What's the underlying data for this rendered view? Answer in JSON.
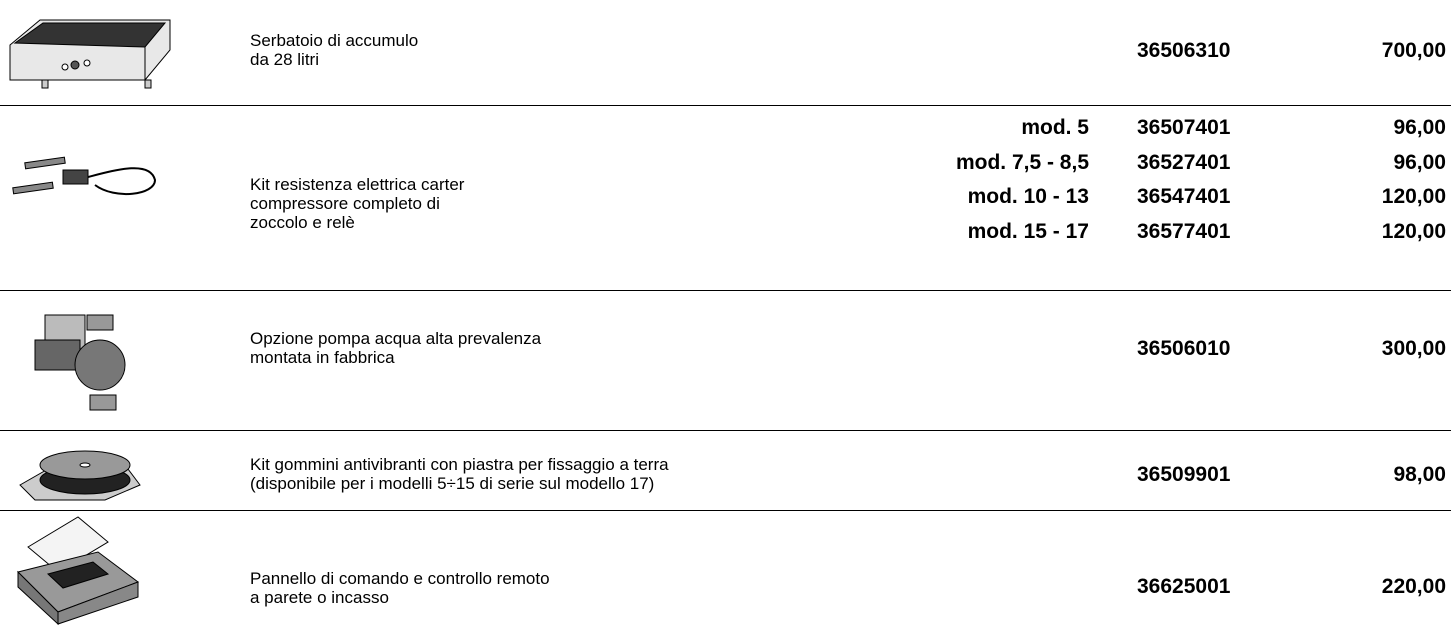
{
  "rows": [
    {
      "description": [
        "Serbatoio di accumulo",
        "da 28 litri"
      ],
      "items": [
        {
          "code": "36506310",
          "price": "700,00"
        }
      ]
    },
    {
      "description": [
        "Kit resistenza elettrica carter",
        "compressore completo di",
        "zoccolo e relè"
      ],
      "items": [
        {
          "model": "mod. 5",
          "code": "36507401",
          "price": "96,00"
        },
        {
          "model": "mod. 7,5 - 8,5",
          "code": "36527401",
          "price": "96,00"
        },
        {
          "model": "mod. 10 - 13",
          "code": "36547401",
          "price": "120,00"
        },
        {
          "model": "mod. 15 - 17",
          "code": "36577401",
          "price": "120,00"
        }
      ]
    },
    {
      "description": [
        "Opzione pompa acqua alta prevalenza",
        "montata in fabbrica"
      ],
      "items": [
        {
          "code": "36506010",
          "price": "300,00"
        }
      ]
    },
    {
      "description": [
        "Kit gommini antivibranti con piastra per fissaggio a terra",
        "(disponibile per i modelli 5÷15 di serie sul modello 17)"
      ],
      "items": [
        {
          "code": "36509901",
          "price": "98,00"
        }
      ]
    },
    {
      "description": [
        "Pannello di comando e controllo remoto",
        "a parete o incasso"
      ],
      "items": [
        {
          "code": "36625001",
          "price": "220,00"
        }
      ]
    }
  ]
}
